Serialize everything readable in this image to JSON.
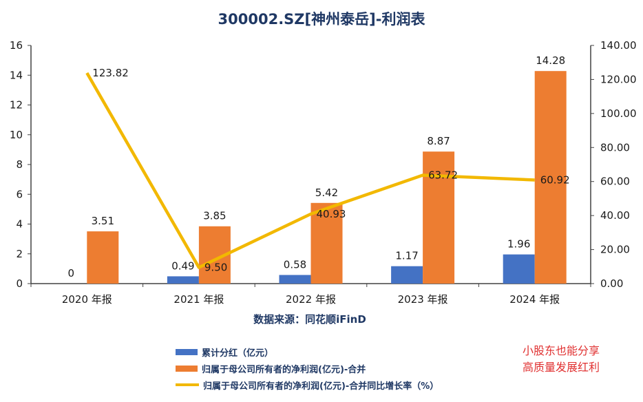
{
  "title": "300002.SZ[神州泰岳]-利润表",
  "source": "数据来源：同花顺iFinD",
  "promo": [
    "小股东也能分享",
    "高质量发展红利"
  ],
  "colors": {
    "dividend": "#4472C4",
    "profit": "#ED7D31",
    "growth": "#F2B800",
    "text": "#1F3864",
    "promo": "#E03030"
  },
  "chart_data": {
    "type": "bar",
    "categories": [
      "2020 年报",
      "2021 年报",
      "2022 年报",
      "2023 年报",
      "2024 年报"
    ],
    "series": [
      {
        "name": "累计分红（亿元）",
        "type": "bar",
        "axis": "left",
        "color": "#4472C4",
        "values": [
          0,
          0.49,
          0.58,
          1.17,
          1.96
        ],
        "labels": [
          "0",
          "0.49",
          "0.58",
          "1.17",
          "1.96"
        ]
      },
      {
        "name": "归属于母公司所有者的净利润(亿元)-合并",
        "type": "bar",
        "axis": "left",
        "color": "#ED7D31",
        "values": [
          3.51,
          3.85,
          5.42,
          8.87,
          14.28
        ],
        "labels": [
          "3.51",
          "3.85",
          "5.42",
          "8.87",
          "14.28"
        ]
      },
      {
        "name": "归属于母公司所有者的净利润(亿元)-合并同比增长率（%）",
        "type": "line",
        "axis": "right",
        "color": "#F2B800",
        "values": [
          123.82,
          9.5,
          40.93,
          63.72,
          60.92
        ],
        "labels": [
          "123.82",
          "9.50",
          "40.93",
          "63.72",
          "60.92"
        ]
      }
    ],
    "y_left": {
      "min": 0,
      "max": 16,
      "ticks": [
        "0",
        "2",
        "4",
        "6",
        "8",
        "10",
        "12",
        "14",
        "16"
      ]
    },
    "y_right": {
      "min": 0,
      "max": 140,
      "ticks": [
        "0.00",
        "20.00",
        "40.00",
        "60.00",
        "80.00",
        "100.00",
        "120.00",
        "140.00"
      ]
    },
    "grid": false,
    "legend_position": "bottom-left"
  }
}
